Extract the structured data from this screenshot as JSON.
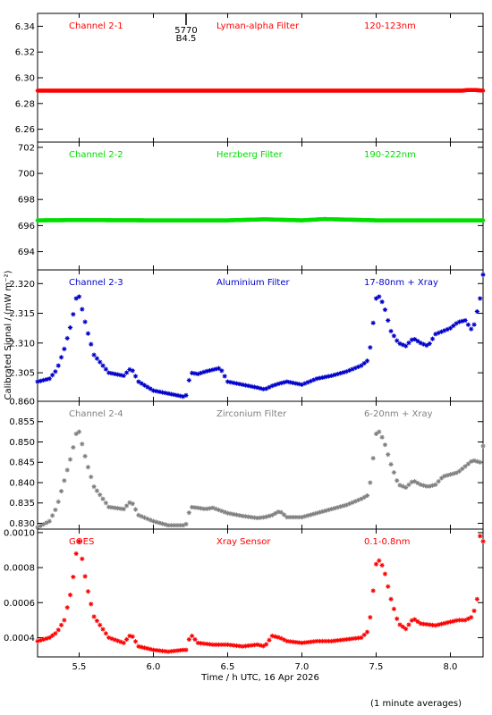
{
  "chart_data": {
    "type": "scatter",
    "xlabel": "Time / h UTC, 16 Apr 2026",
    "ylabel": "Calibrated Signal / (mW m⁻²)",
    "xlim": [
      5.22,
      8.22
    ],
    "x_ticks": [
      "5.5",
      "6.0",
      "6.5",
      "7.0",
      "7.5",
      "8.0"
    ],
    "marker_label": {
      "x": 6.22,
      "lines": [
        "5770",
        "B4.5"
      ]
    },
    "panels": [
      {
        "name": "Channel 2-1",
        "filter": "Lyman-alpha Filter",
        "band": "120-123nm",
        "color": "#ff0000",
        "ylim": [
          6.25,
          6.35
        ],
        "y_ticks": [
          "6.26",
          "6.28",
          "6.30",
          "6.32",
          "6.34"
        ],
        "x": [
          5.22,
          5.5,
          6.0,
          6.5,
          7.0,
          7.5,
          8.0,
          8.08,
          8.12,
          8.16,
          8.22
        ],
        "y": [
          6.29,
          6.29,
          6.29,
          6.29,
          6.29,
          6.29,
          6.29,
          6.29,
          6.2905,
          6.2905,
          6.29
        ]
      },
      {
        "name": "Channel 2-2",
        "filter": "Herzberg Filter",
        "band": "190-222nm",
        "color": "#00dd00",
        "ylim": [
          692.6,
          702.4
        ],
        "y_ticks": [
          "694",
          "696",
          "698",
          "700",
          "702"
        ],
        "x": [
          5.22,
          5.5,
          6.0,
          6.5,
          6.75,
          7.0,
          7.15,
          7.5,
          8.0,
          8.22
        ],
        "y": [
          696.4,
          696.42,
          696.4,
          696.4,
          696.48,
          696.4,
          696.5,
          696.4,
          696.4,
          696.4
        ]
      },
      {
        "name": "Channel 2-3",
        "filter": "Aluminium Filter",
        "band": "17-80nm + Xray",
        "color": "#0000cc",
        "ylim": [
          2.3002,
          2.3223
        ],
        "y_ticks": [
          "2.305",
          "2.310",
          "2.315",
          "2.320"
        ],
        "x": [
          5.22,
          5.3,
          5.35,
          5.4,
          5.45,
          5.48,
          5.5,
          5.55,
          5.6,
          5.7,
          5.8,
          5.85,
          5.9,
          6.0,
          6.1,
          6.2,
          6.22,
          6.25,
          6.3,
          6.35,
          6.4,
          6.45,
          6.5,
          6.6,
          6.7,
          6.75,
          6.8,
          6.85,
          6.9,
          7.0,
          7.1,
          7.2,
          7.3,
          7.4,
          7.45,
          7.5,
          7.52,
          7.55,
          7.6,
          7.65,
          7.7,
          7.75,
          7.8,
          7.85,
          7.9,
          7.95,
          8.0,
          8.05,
          8.1,
          8.15,
          8.2,
          8.22
        ],
        "y": [
          2.3035,
          2.304,
          2.3055,
          2.309,
          2.3135,
          2.3175,
          2.3178,
          2.3125,
          2.308,
          2.305,
          2.3045,
          2.3058,
          2.3035,
          2.302,
          2.3015,
          2.301,
          2.3012,
          2.305,
          2.3048,
          2.3052,
          2.3055,
          2.3058,
          2.3035,
          2.303,
          2.3025,
          2.3022,
          2.3028,
          2.3032,
          2.3035,
          2.303,
          2.304,
          2.3045,
          2.3052,
          2.3062,
          2.3072,
          2.3175,
          2.3178,
          2.3165,
          2.312,
          2.31,
          2.3095,
          2.3108,
          2.31,
          2.3095,
          2.3115,
          2.312,
          2.3125,
          2.3135,
          2.3138,
          2.312,
          2.3175,
          2.3215
        ]
      },
      {
        "name": "Channel 2-4",
        "filter": "Zirconium Filter",
        "band": "6-20nm + Xray",
        "color": "#808080",
        "ylim": [
          0.82857,
          0.86
        ],
        "y_ticks": [
          "0.830",
          "0.835",
          "0.840",
          "0.845",
          "0.850",
          "0.855",
          "0.860"
        ],
        "x": [
          5.22,
          5.3,
          5.35,
          5.4,
          5.45,
          5.48,
          5.5,
          5.55,
          5.6,
          5.7,
          5.8,
          5.85,
          5.9,
          6.0,
          6.1,
          6.2,
          6.22,
          6.25,
          6.3,
          6.35,
          6.4,
          6.5,
          6.6,
          6.7,
          6.75,
          6.8,
          6.85,
          6.9,
          7.0,
          7.1,
          7.2,
          7.3,
          7.4,
          7.45,
          7.5,
          7.52,
          7.55,
          7.6,
          7.65,
          7.7,
          7.75,
          7.8,
          7.85,
          7.9,
          7.95,
          8.0,
          8.05,
          8.1,
          8.15,
          8.2,
          8.22
        ],
        "y": [
          0.829,
          0.8305,
          0.834,
          0.8405,
          0.847,
          0.852,
          0.8525,
          0.845,
          0.839,
          0.834,
          0.8335,
          0.8355,
          0.832,
          0.8305,
          0.8295,
          0.8295,
          0.8298,
          0.834,
          0.8338,
          0.8335,
          0.8338,
          0.8325,
          0.8318,
          0.8313,
          0.8315,
          0.832,
          0.833,
          0.8315,
          0.8315,
          0.8325,
          0.8335,
          0.8345,
          0.836,
          0.837,
          0.852,
          0.8525,
          0.8505,
          0.8445,
          0.8395,
          0.8388,
          0.8405,
          0.8395,
          0.839,
          0.8395,
          0.8415,
          0.842,
          0.8425,
          0.844,
          0.8455,
          0.845,
          0.849
        ]
      },
      {
        "name": "GOES",
        "filter": "Xray Sensor",
        "band": "0.1-0.8nm",
        "color": "#ff0000",
        "ylim": [
          0.00029,
          0.00102
        ],
        "y_ticks": [
          "0.0004",
          "0.0006",
          "0.0008",
          "0.0010"
        ],
        "x": [
          5.22,
          5.3,
          5.35,
          5.4,
          5.45,
          5.48,
          5.5,
          5.55,
          5.6,
          5.7,
          5.8,
          5.85,
          5.9,
          6.0,
          6.1,
          6.2,
          6.22,
          6.25,
          6.3,
          6.4,
          6.5,
          6.6,
          6.7,
          6.75,
          6.8,
          6.85,
          6.9,
          7.0,
          7.1,
          7.2,
          7.3,
          7.4,
          7.45,
          7.5,
          7.52,
          7.55,
          7.6,
          7.65,
          7.7,
          7.75,
          7.8,
          7.9,
          8.0,
          8.05,
          8.1,
          8.15,
          8.18,
          8.2,
          8.22
        ],
        "y": [
          0.00038,
          0.0004,
          0.00043,
          0.0005,
          0.00068,
          0.00088,
          0.00095,
          0.0007,
          0.00052,
          0.0004,
          0.00037,
          0.00042,
          0.00035,
          0.00033,
          0.00032,
          0.00033,
          0.00033,
          0.00042,
          0.00037,
          0.00036,
          0.00036,
          0.00035,
          0.00036,
          0.00035,
          0.00041,
          0.0004,
          0.00038,
          0.00037,
          0.00038,
          0.00038,
          0.00039,
          0.0004,
          0.00044,
          0.00082,
          0.00084,
          0.0008,
          0.00062,
          0.00048,
          0.00045,
          0.00051,
          0.00048,
          0.00047,
          0.00049,
          0.0005,
          0.0005,
          0.00052,
          0.00062,
          0.00098,
          0.00095
        ]
      }
    ]
  },
  "footer_note": "(1 minute averages)"
}
